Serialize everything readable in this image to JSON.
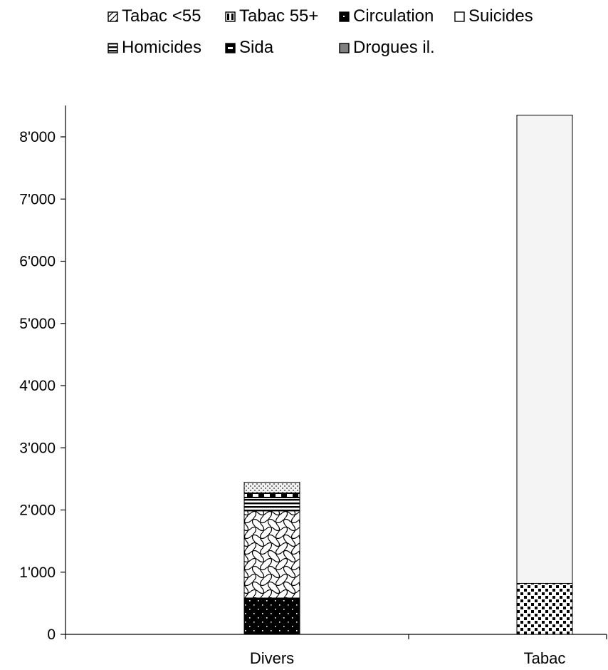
{
  "chart_data": {
    "type": "bar",
    "stacked": true,
    "categories": [
      "Divers",
      "Tabac"
    ],
    "series": [
      {
        "name": "Tabac <55",
        "pattern": "diag-hatch",
        "values": [
          0,
          820
        ]
      },
      {
        "name": "Tabac 55+",
        "pattern": "vertical-bars",
        "values": [
          0,
          7530
        ]
      },
      {
        "name": "Circulation",
        "pattern": "black-dots",
        "values": [
          585,
          0
        ]
      },
      {
        "name": "Suicides",
        "pattern": "weave",
        "values": [
          1400,
          0
        ]
      },
      {
        "name": "Homicides",
        "pattern": "horizontal-lines",
        "values": [
          210,
          0
        ]
      },
      {
        "name": "Sida",
        "pattern": "dashed-black",
        "values": [
          80,
          0
        ]
      },
      {
        "name": "Drogues il.",
        "pattern": "light-dots",
        "values": [
          170,
          0
        ]
      }
    ],
    "ylim": [
      0,
      8000
    ],
    "yticks": [
      0,
      1000,
      2000,
      3000,
      4000,
      5000,
      6000,
      7000,
      8000
    ],
    "ytick_labels": [
      "0",
      "1'000",
      "2'000",
      "3'000",
      "4'000",
      "5'000",
      "6'000",
      "7'000",
      "8'000"
    ],
    "grid": false,
    "legend_position": "top",
    "title": "",
    "xlabel": "",
    "ylabel": ""
  }
}
